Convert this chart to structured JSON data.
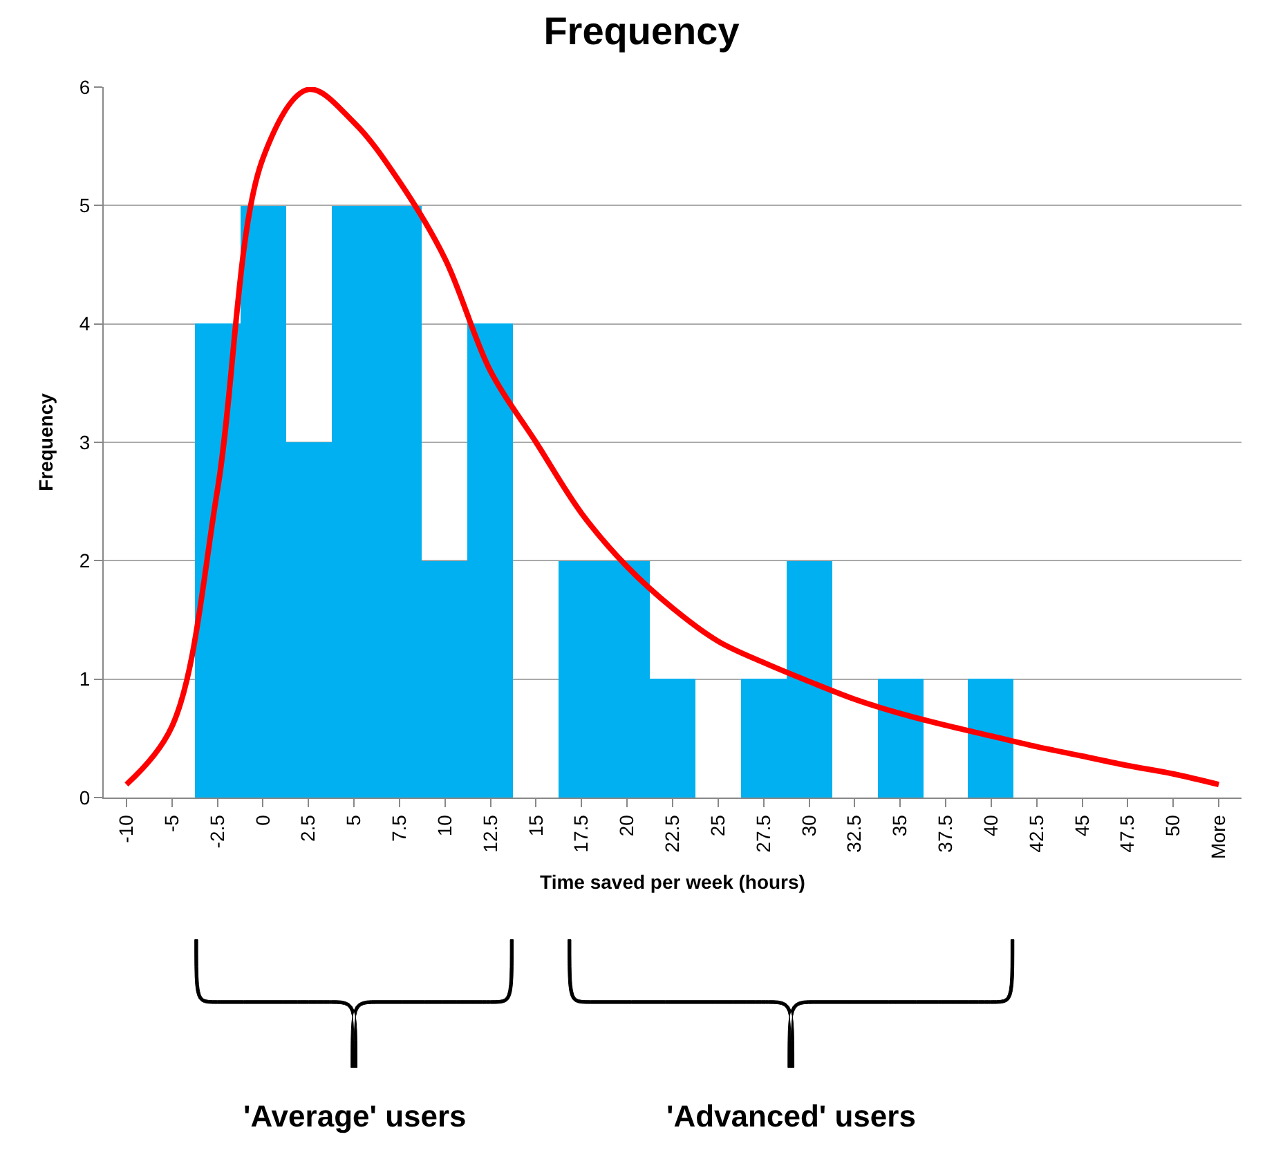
{
  "chart_data": {
    "type": "bar",
    "title": "Frequency",
    "xlabel": "Time saved per week (hours)",
    "ylabel": "Frequency",
    "categories": [
      "-10",
      "-5",
      "-2.5",
      "0",
      "2.5",
      "5",
      "7.5",
      "10",
      "12.5",
      "15",
      "17.5",
      "20",
      "22.5",
      "25",
      "27.5",
      "30",
      "32.5",
      "35",
      "37.5",
      "40",
      "42.5",
      "45",
      "47.5",
      "50",
      "More"
    ],
    "series": [
      {
        "color": "#00b0f0",
        "values": [
          0,
          0,
          4,
          5,
          3,
          5,
          5,
          2,
          4,
          0,
          2,
          2,
          1,
          0,
          1,
          2,
          0,
          1,
          0,
          1,
          0,
          0,
          0,
          0,
          0
        ]
      },
      {
        "type": "line",
        "color": "#ff0000",
        "values": [
          0.11,
          0.6,
          2.6,
          5.4,
          5.98,
          5.7,
          5.2,
          4.55,
          3.6,
          3.0,
          2.4,
          1.95,
          1.6,
          1.32,
          1.14,
          0.98,
          0.83,
          0.71,
          0.61,
          0.52,
          0.43,
          0.35,
          0.27,
          0.2,
          0.11
        ]
      }
    ],
    "ylim": [
      0,
      6
    ],
    "yticks": [
      0,
      1,
      2,
      3,
      4,
      5,
      6
    ],
    "grid": "y",
    "marker": "none",
    "annotations": [
      "'Average' users",
      "'Advanced' users"
    ]
  }
}
